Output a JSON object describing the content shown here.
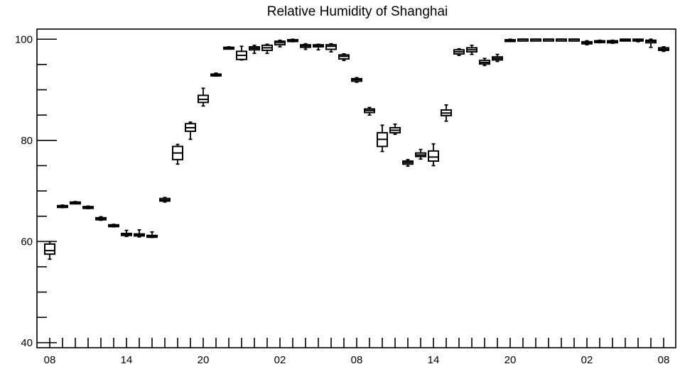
{
  "chart_data": {
    "type": "box",
    "title": "Relative Humidity of Shanghai",
    "xlabel": "",
    "ylabel": "",
    "ylim": [
      39,
      102
    ],
    "y_ticks": [
      40,
      60,
      80,
      100
    ],
    "x_tick_labels": [
      "08",
      "14",
      "20",
      "02",
      "08",
      "14",
      "20",
      "02",
      "08"
    ],
    "x_tick_label_positions": [
      0,
      6,
      12,
      18,
      24,
      30,
      36,
      42,
      48
    ],
    "n_positions": 49,
    "grid": false,
    "boxes": [
      {
        "x": 0,
        "low": 56.5,
        "q1": 57.5,
        "median": 58.2,
        "q3": 59.5,
        "high": 60.0
      },
      {
        "x": 1,
        "low": 66.7,
        "q1": 66.8,
        "median": 67.0,
        "q3": 67.1,
        "high": 67.2
      },
      {
        "x": 2,
        "low": 67.5,
        "q1": 67.6,
        "median": 67.7,
        "q3": 67.8,
        "high": 67.9
      },
      {
        "x": 3,
        "low": 66.5,
        "q1": 66.6,
        "median": 66.8,
        "q3": 66.9,
        "high": 67.0
      },
      {
        "x": 4,
        "low": 64.2,
        "q1": 64.3,
        "median": 64.5,
        "q3": 64.7,
        "high": 64.9
      },
      {
        "x": 5,
        "low": 62.9,
        "q1": 63.0,
        "median": 63.2,
        "q3": 63.3,
        "high": 63.4
      },
      {
        "x": 6,
        "low": 61.0,
        "q1": 61.2,
        "median": 61.4,
        "q3": 61.6,
        "high": 62.2
      },
      {
        "x": 7,
        "low": 60.9,
        "q1": 61.1,
        "median": 61.3,
        "q3": 61.5,
        "high": 62.3
      },
      {
        "x": 8,
        "low": 60.8,
        "q1": 60.9,
        "median": 61.0,
        "q3": 61.2,
        "high": 61.9
      },
      {
        "x": 9,
        "low": 67.8,
        "q1": 68.0,
        "median": 68.2,
        "q3": 68.5,
        "high": 68.7
      },
      {
        "x": 10,
        "low": 75.3,
        "q1": 76.2,
        "median": 77.5,
        "q3": 78.8,
        "high": 79.2
      },
      {
        "x": 11,
        "low": 80.2,
        "q1": 81.8,
        "median": 82.5,
        "q3": 83.3,
        "high": 83.6
      },
      {
        "x": 12,
        "low": 86.8,
        "q1": 87.5,
        "median": 88.1,
        "q3": 88.9,
        "high": 90.3
      },
      {
        "x": 13,
        "low": 92.7,
        "q1": 92.9,
        "median": 93.0,
        "q3": 93.1,
        "high": 93.3
      },
      {
        "x": 14,
        "low": 98.1,
        "q1": 98.2,
        "median": 98.3,
        "q3": 98.4,
        "high": 98.5
      },
      {
        "x": 15,
        "low": 95.9,
        "q1": 96.0,
        "median": 96.8,
        "q3": 97.6,
        "high": 98.6
      },
      {
        "x": 16,
        "low": 97.2,
        "q1": 97.9,
        "median": 98.2,
        "q3": 98.5,
        "high": 98.8
      },
      {
        "x": 17,
        "low": 97.2,
        "q1": 97.8,
        "median": 98.3,
        "q3": 98.8,
        "high": 99.0
      },
      {
        "x": 18,
        "low": 98.5,
        "q1": 98.9,
        "median": 99.3,
        "q3": 99.6,
        "high": 99.8
      },
      {
        "x": 19,
        "low": 99.5,
        "q1": 99.6,
        "median": 99.8,
        "q3": 99.9,
        "high": 100.0
      },
      {
        "x": 20,
        "low": 98.0,
        "q1": 98.4,
        "median": 98.7,
        "q3": 98.9,
        "high": 99.1
      },
      {
        "x": 21,
        "low": 97.9,
        "q1": 98.5,
        "median": 98.7,
        "q3": 98.9,
        "high": 99.0
      },
      {
        "x": 22,
        "low": 97.5,
        "q1": 98.0,
        "median": 98.6,
        "q3": 98.9,
        "high": 99.1
      },
      {
        "x": 23,
        "low": 95.8,
        "q1": 96.1,
        "median": 96.6,
        "q3": 96.9,
        "high": 97.1
      },
      {
        "x": 24,
        "low": 91.5,
        "q1": 91.7,
        "median": 92.0,
        "q3": 92.2,
        "high": 92.4
      },
      {
        "x": 25,
        "low": 85.0,
        "q1": 85.5,
        "median": 85.9,
        "q3": 86.2,
        "high": 86.5
      },
      {
        "x": 26,
        "low": 77.8,
        "q1": 78.8,
        "median": 80.2,
        "q3": 81.5,
        "high": 83.0
      },
      {
        "x": 27,
        "low": 81.2,
        "q1": 81.5,
        "median": 82.0,
        "q3": 82.5,
        "high": 83.2
      },
      {
        "x": 28,
        "low": 74.9,
        "q1": 75.3,
        "median": 75.6,
        "q3": 75.9,
        "high": 76.2
      },
      {
        "x": 29,
        "low": 76.3,
        "q1": 76.8,
        "median": 77.1,
        "q3": 77.5,
        "high": 78.2
      },
      {
        "x": 30,
        "low": 75.0,
        "q1": 75.9,
        "median": 76.7,
        "q3": 77.9,
        "high": 79.3
      },
      {
        "x": 31,
        "low": 83.8,
        "q1": 84.9,
        "median": 85.4,
        "q3": 86.0,
        "high": 87.0
      },
      {
        "x": 32,
        "low": 96.8,
        "q1": 97.1,
        "median": 97.5,
        "q3": 97.9,
        "high": 98.1
      },
      {
        "x": 33,
        "low": 97.0,
        "q1": 97.5,
        "median": 97.9,
        "q3": 98.3,
        "high": 98.8
      },
      {
        "x": 34,
        "low": 94.8,
        "q1": 95.1,
        "median": 95.4,
        "q3": 95.8,
        "high": 96.2
      },
      {
        "x": 35,
        "low": 95.6,
        "q1": 95.9,
        "median": 96.2,
        "q3": 96.5,
        "high": 97.0
      },
      {
        "x": 36,
        "low": 99.6,
        "q1": 99.7,
        "median": 99.8,
        "q3": 99.9,
        "high": 100.0
      },
      {
        "x": 37,
        "low": 99.9,
        "q1": 99.95,
        "median": 100.0,
        "q3": 100.0,
        "high": 100.0
      },
      {
        "x": 38,
        "low": 99.9,
        "q1": 99.95,
        "median": 100.0,
        "q3": 100.0,
        "high": 100.0
      },
      {
        "x": 39,
        "low": 99.9,
        "q1": 99.95,
        "median": 100.0,
        "q3": 100.0,
        "high": 100.0
      },
      {
        "x": 40,
        "low": 99.9,
        "q1": 99.95,
        "median": 100.0,
        "q3": 100.0,
        "high": 100.0
      },
      {
        "x": 41,
        "low": 99.8,
        "q1": 99.9,
        "median": 100.0,
        "q3": 100.0,
        "high": 100.0
      },
      {
        "x": 42,
        "low": 98.9,
        "q1": 99.1,
        "median": 99.3,
        "q3": 99.5,
        "high": 99.7
      },
      {
        "x": 43,
        "low": 99.3,
        "q1": 99.4,
        "median": 99.6,
        "q3": 99.7,
        "high": 99.8
      },
      {
        "x": 44,
        "low": 99.2,
        "q1": 99.3,
        "median": 99.5,
        "q3": 99.7,
        "high": 99.8
      },
      {
        "x": 45,
        "low": 99.7,
        "q1": 99.8,
        "median": 99.9,
        "q3": 100.0,
        "high": 100.0
      },
      {
        "x": 46,
        "low": 99.5,
        "q1": 99.7,
        "median": 99.9,
        "q3": 100.0,
        "high": 100.0
      },
      {
        "x": 47,
        "low": 98.4,
        "q1": 99.3,
        "median": 99.6,
        "q3": 99.8,
        "high": 100.0
      },
      {
        "x": 48,
        "low": 97.6,
        "q1": 97.8,
        "median": 98.0,
        "q3": 98.3,
        "high": 98.5
      }
    ]
  }
}
